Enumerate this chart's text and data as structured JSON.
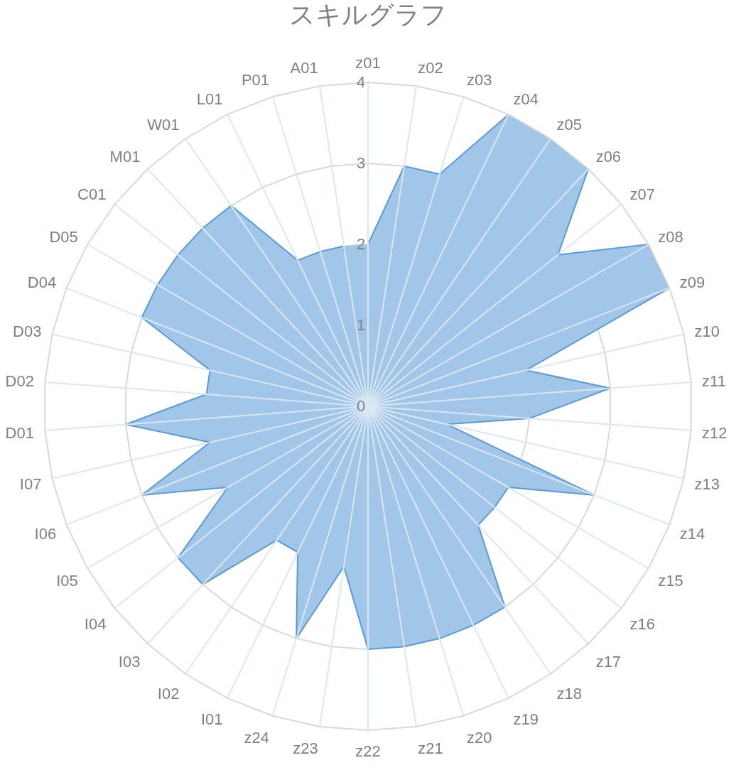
{
  "chart_data": {
    "type": "radar",
    "title": "スキルグラフ",
    "categories": [
      "z01",
      "z02",
      "z03",
      "z04",
      "z05",
      "z06",
      "z07",
      "z08",
      "z09",
      "z10",
      "z11",
      "z12",
      "z13",
      "z14",
      "z15",
      "z16",
      "z17",
      "z18",
      "z19",
      "z20",
      "z21",
      "z22",
      "z23",
      "z24",
      "I01",
      "I02",
      "I03",
      "I04",
      "I05",
      "I06",
      "I07",
      "D01",
      "D02",
      "D03",
      "D04",
      "D05",
      "C01",
      "M01",
      "W01",
      "L01",
      "P01",
      "A01"
    ],
    "series": [
      {
        "color": "#5b9bd5",
        "values": [
          2,
          3,
          3,
          4,
          4,
          4,
          3,
          4,
          4,
          2,
          3,
          2,
          1,
          3,
          2,
          2,
          2,
          3,
          3,
          3,
          3,
          3,
          2,
          3,
          2,
          2,
          3,
          3,
          2,
          3,
          2,
          3,
          2,
          2,
          3,
          3,
          3,
          3,
          3,
          2,
          2,
          2
        ]
      }
    ],
    "ylim": [
      0,
      4
    ],
    "yticks": [
      0,
      1,
      2,
      3,
      4
    ],
    "grid": true
  }
}
